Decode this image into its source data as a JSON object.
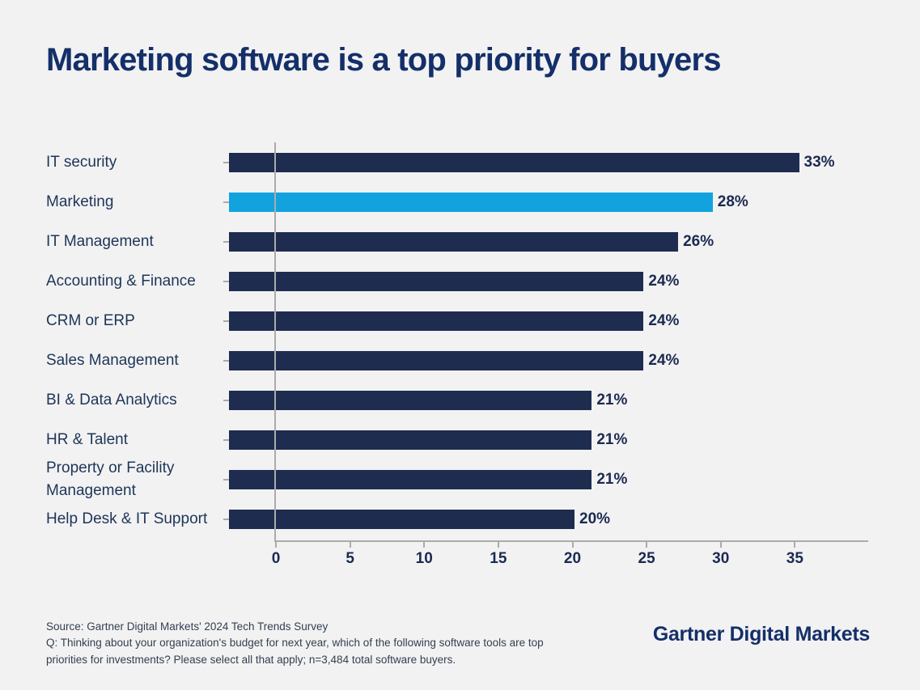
{
  "title": "Marketing software is a top priority for buyers",
  "chart_data": {
    "type": "bar",
    "orientation": "horizontal",
    "title": "Marketing software is a top priority for buyers",
    "categories": [
      "IT security",
      "Marketing",
      "IT Management",
      "Accounting & Finance",
      "CRM or ERP",
      "Sales Management",
      "BI & Data Analytics",
      "HR & Talent",
      "Property or Facility Management",
      "Help Desk & IT Support"
    ],
    "values": [
      33,
      28,
      26,
      24,
      24,
      24,
      21,
      21,
      21,
      20
    ],
    "value_labels": [
      "33%",
      "28%",
      "26%",
      "24%",
      "24%",
      "24%",
      "21%",
      "21%",
      "21%",
      "20%"
    ],
    "unit": "percent",
    "highlighted_category": "Marketing",
    "highlight_index": 1,
    "xlabel": "",
    "ylabel": "",
    "xlim": [
      0,
      40
    ],
    "xticks": [
      0,
      5,
      10,
      15,
      20,
      25,
      30,
      35
    ],
    "grid": false,
    "legend": null,
    "colors": {
      "bar": "#1E2C50",
      "bar_highlight": "#12A3DF",
      "axis": "#ABABAB",
      "value_label": "#1B2A50"
    }
  },
  "footer": {
    "source": "Source: Gartner Digital Markets' 2024 Tech Trends Survey",
    "question": "Q: Thinking about your organization's budget for next year, which of the following software tools are top priorities for investments? Please select all that apply; n=3,484 total software buyers."
  },
  "brand": "Gartner Digital Markets",
  "colors": {
    "background": "#F2F2F3",
    "title": "#142F69",
    "category_label": "#1D3557",
    "footer_text": "#33404F"
  }
}
